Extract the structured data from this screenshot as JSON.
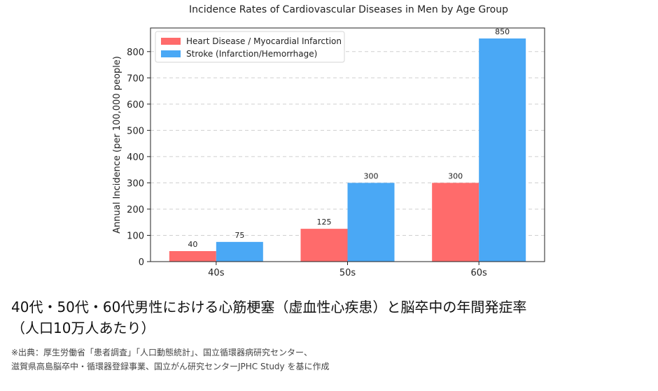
{
  "chart_data": {
    "type": "bar",
    "title": "Incidence Rates of Cardiovascular Diseases in Men by Age Group",
    "xlabel": "",
    "ylabel": "Annual Incidence (per 100,000 people)",
    "categories": [
      "40s",
      "50s",
      "60s"
    ],
    "series": [
      {
        "name": "Heart Disease / Myocardial Infarction",
        "color": "#ff6b6b",
        "values": [
          40,
          125,
          300
        ]
      },
      {
        "name": "Stroke (Infarction/Hemorrhage)",
        "color": "#4aa8f5",
        "values": [
          75,
          300,
          850
        ]
      }
    ],
    "ylim": [
      0,
      890
    ],
    "yticks": [
      0,
      100,
      200,
      300,
      400,
      500,
      600,
      700,
      800
    ],
    "grid": true,
    "legend": "top-left",
    "data_labels": true
  },
  "caption": {
    "line1": "40代・50代・60代男性における心筋梗塞（虚血性心疾患）と脳卒中の年間発症率",
    "line2": "（人口10万人あたり）",
    "source_line1": "※出典：厚生労働省「患者調査」「人口動態統計」、国立循環器病研究センター、",
    "source_line2": "滋賀県高島脳卒中・循環器登録事業、国立がん研究センターJPHC Study を基に作成"
  }
}
